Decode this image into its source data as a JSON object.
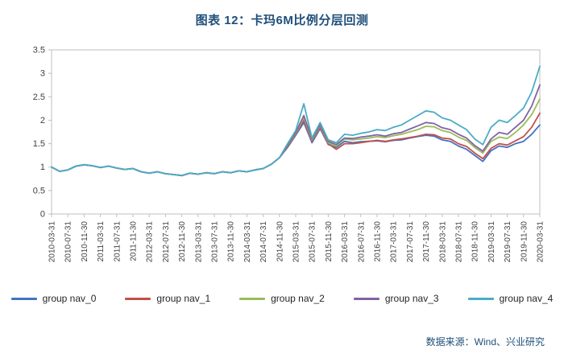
{
  "page": {
    "title": "图表 12：卡玛6M比例分层回测",
    "source": "数据来源：Wind、兴业研究"
  },
  "colors": {
    "title_text": "#1F4E79",
    "source_text": "#1F4E79",
    "axis_text": "#404040",
    "plot_border": "#BFBFBF"
  },
  "chart_data": {
    "type": "line",
    "title": "图表 12：卡玛6M比例分层回测",
    "xlabel": "",
    "ylabel": "",
    "ylim": [
      0,
      3.5
    ],
    "yticks": [
      0,
      0.5,
      1,
      1.5,
      2,
      2.5,
      3,
      3.5
    ],
    "ytick_labels": [
      "0",
      "0.5",
      "1",
      "1.5",
      "2",
      "2.5",
      "3",
      "3.5"
    ],
    "grid": false,
    "legend_position": "bottom",
    "x_interval_months": 2,
    "points_per_tick": 2,
    "x_tick_labels": [
      "2010-03-31",
      "2010-07-31",
      "2010-11-30",
      "2011-03-31",
      "2011-07-31",
      "2011-11-30",
      "2012-03-31",
      "2012-07-31",
      "2012-11-30",
      "2013-03-31",
      "2013-07-31",
      "2013-11-30",
      "2014-03-31",
      "2014-07-31",
      "2014-11-30",
      "2015-03-31",
      "2015-07-31",
      "2015-11-30",
      "2016-03-31",
      "2016-07-31",
      "2016-11-30",
      "2017-03-31",
      "2017-07-31",
      "2017-11-30",
      "2018-03-31",
      "2018-07-31",
      "2018-11-30",
      "2019-03-31",
      "2019-07-31",
      "2019-11-30",
      "2020-03-31"
    ],
    "series": [
      {
        "name": "group nav_0",
        "color": "#4472C4",
        "values": [
          1.0,
          0.91,
          0.94,
          1.02,
          1.05,
          1.03,
          0.99,
          1.02,
          0.98,
          0.95,
          0.97,
          0.9,
          0.87,
          0.9,
          0.86,
          0.84,
          0.82,
          0.87,
          0.85,
          0.88,
          0.86,
          0.9,
          0.88,
          0.92,
          0.9,
          0.94,
          0.97,
          1.06,
          1.2,
          1.42,
          1.68,
          1.95,
          1.52,
          1.82,
          1.48,
          1.42,
          1.55,
          1.52,
          1.54,
          1.55,
          1.56,
          1.54,
          1.57,
          1.58,
          1.62,
          1.65,
          1.68,
          1.66,
          1.58,
          1.55,
          1.45,
          1.38,
          1.25,
          1.12,
          1.35,
          1.45,
          1.42,
          1.5,
          1.55,
          1.7,
          1.9
        ]
      },
      {
        "name": "group nav_1",
        "color": "#C0504D",
        "values": [
          1.0,
          0.91,
          0.94,
          1.02,
          1.05,
          1.03,
          0.99,
          1.02,
          0.98,
          0.95,
          0.97,
          0.9,
          0.87,
          0.9,
          0.86,
          0.84,
          0.82,
          0.87,
          0.85,
          0.88,
          0.86,
          0.9,
          0.88,
          0.92,
          0.9,
          0.94,
          0.97,
          1.06,
          1.2,
          1.44,
          1.7,
          2.0,
          1.55,
          1.85,
          1.5,
          1.38,
          1.5,
          1.5,
          1.52,
          1.55,
          1.57,
          1.55,
          1.58,
          1.6,
          1.63,
          1.66,
          1.7,
          1.69,
          1.62,
          1.6,
          1.5,
          1.44,
          1.3,
          1.18,
          1.4,
          1.5,
          1.47,
          1.56,
          1.65,
          1.85,
          2.15
        ]
      },
      {
        "name": "group nav_2",
        "color": "#9BBB59",
        "values": [
          1.0,
          0.91,
          0.94,
          1.02,
          1.05,
          1.03,
          0.99,
          1.02,
          0.98,
          0.95,
          0.97,
          0.9,
          0.87,
          0.9,
          0.86,
          0.84,
          0.82,
          0.87,
          0.85,
          0.88,
          0.86,
          0.9,
          0.88,
          0.92,
          0.9,
          0.94,
          0.97,
          1.06,
          1.2,
          1.46,
          1.72,
          2.05,
          1.58,
          1.88,
          1.52,
          1.45,
          1.6,
          1.58,
          1.6,
          1.62,
          1.65,
          1.63,
          1.67,
          1.7,
          1.75,
          1.8,
          1.87,
          1.86,
          1.78,
          1.74,
          1.64,
          1.57,
          1.42,
          1.3,
          1.55,
          1.64,
          1.61,
          1.74,
          1.9,
          2.12,
          2.45
        ]
      },
      {
        "name": "group nav_3",
        "color": "#8064A2",
        "values": [
          1.0,
          0.91,
          0.94,
          1.02,
          1.05,
          1.03,
          0.99,
          1.02,
          0.98,
          0.95,
          0.97,
          0.9,
          0.87,
          0.9,
          0.86,
          0.84,
          0.82,
          0.87,
          0.85,
          0.88,
          0.86,
          0.9,
          0.88,
          0.92,
          0.9,
          0.94,
          0.97,
          1.06,
          1.2,
          1.47,
          1.74,
          2.1,
          1.6,
          1.9,
          1.55,
          1.48,
          1.62,
          1.61,
          1.64,
          1.66,
          1.69,
          1.66,
          1.71,
          1.74,
          1.81,
          1.88,
          1.95,
          1.93,
          1.84,
          1.8,
          1.7,
          1.62,
          1.46,
          1.34,
          1.6,
          1.74,
          1.7,
          1.85,
          2.0,
          2.3,
          2.75
        ]
      },
      {
        "name": "group nav_4",
        "color": "#4BACC6",
        "values": [
          1.0,
          0.91,
          0.94,
          1.02,
          1.05,
          1.03,
          0.99,
          1.02,
          0.98,
          0.95,
          0.97,
          0.9,
          0.87,
          0.9,
          0.86,
          0.84,
          0.82,
          0.87,
          0.85,
          0.88,
          0.86,
          0.9,
          0.88,
          0.92,
          0.9,
          0.94,
          0.97,
          1.06,
          1.2,
          1.5,
          1.78,
          2.35,
          1.62,
          1.95,
          1.58,
          1.52,
          1.7,
          1.68,
          1.72,
          1.75,
          1.8,
          1.78,
          1.85,
          1.9,
          2.0,
          2.1,
          2.2,
          2.17,
          2.05,
          2.0,
          1.9,
          1.8,
          1.6,
          1.48,
          1.85,
          2.0,
          1.95,
          2.1,
          2.26,
          2.6,
          3.15
        ]
      }
    ]
  }
}
